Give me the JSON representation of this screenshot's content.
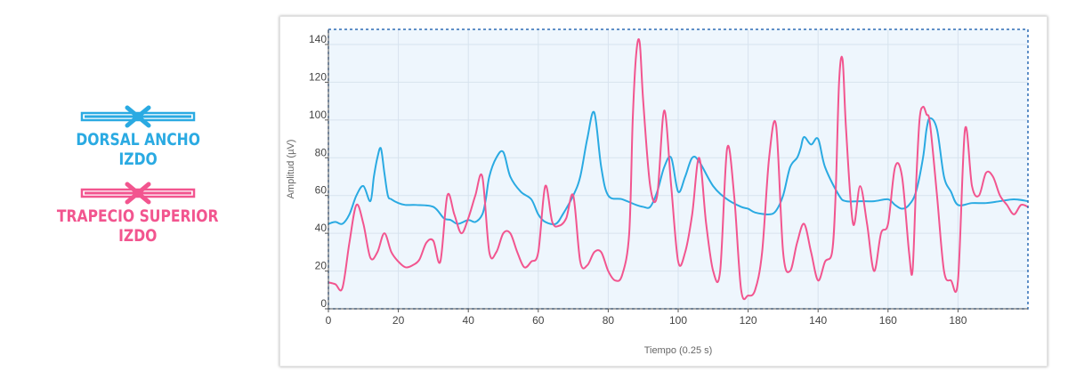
{
  "legend": [
    {
      "label_line1": "DORSAL ANCHO",
      "label_line2": "IZDO",
      "color": "#2aaae2"
    },
    {
      "label_line1": "TRAPECIO SUPERIOR",
      "label_line2": "IZDO",
      "color": "#f2558f"
    }
  ],
  "chart_data": {
    "type": "line",
    "xlabel": "Tiempo (0.25 s)",
    "ylabel": "Amplitud (µV)",
    "xlim": [
      0,
      200
    ],
    "ylim": [
      0,
      148
    ],
    "xticks": [
      0,
      20,
      40,
      60,
      80,
      100,
      120,
      140,
      160,
      180
    ],
    "yticks": [
      0,
      20,
      40,
      60,
      80,
      100,
      120,
      140
    ],
    "grid": true,
    "series": [
      {
        "name": "DORSAL ANCHO IZDO",
        "color": "#2aaae2",
        "x": [
          0,
          2,
          4,
          6,
          8,
          10,
          12,
          13,
          14,
          15,
          16,
          17,
          18,
          20,
          22,
          25,
          30,
          33,
          35,
          37,
          40,
          42,
          44,
          45,
          46,
          48,
          50,
          52,
          55,
          58,
          60,
          62,
          65,
          67,
          70,
          72,
          74,
          76,
          78,
          80,
          84,
          88,
          90,
          92,
          94,
          96,
          98,
          100,
          102,
          104,
          106,
          110,
          114,
          118,
          120,
          122,
          126,
          128,
          130,
          132,
          134,
          135,
          136,
          138,
          140,
          142,
          146,
          148,
          152,
          156,
          160,
          162,
          164,
          166,
          168,
          170,
          171,
          172,
          174,
          176,
          178,
          180,
          184,
          188,
          192,
          196,
          200
        ],
        "y": [
          45,
          46,
          45,
          50,
          60,
          65,
          57,
          70,
          80,
          85,
          72,
          60,
          58,
          56,
          55,
          55,
          54,
          48,
          47,
          45,
          47,
          46,
          50,
          58,
          70,
          80,
          83,
          70,
          62,
          58,
          50,
          46,
          45,
          50,
          60,
          70,
          90,
          104,
          75,
          60,
          58,
          55,
          54,
          54,
          62,
          75,
          80,
          62,
          70,
          80,
          78,
          65,
          58,
          54,
          53,
          51,
          50,
          52,
          60,
          75,
          80,
          85,
          91,
          87,
          90,
          75,
          60,
          57,
          57,
          57,
          58,
          55,
          53,
          55,
          62,
          80,
          95,
          101,
          95,
          70,
          62,
          55,
          56,
          56,
          57,
          58,
          57
        ]
      },
      {
        "name": "TRAPECIO SUPERIOR IZDO",
        "color": "#f2558f",
        "x": [
          0,
          2,
          4,
          6,
          8,
          10,
          12,
          14,
          16,
          18,
          20,
          22,
          24,
          26,
          28,
          30,
          32,
          34,
          36,
          38,
          40,
          42,
          44,
          46,
          48,
          50,
          52,
          54,
          56,
          58,
          60,
          62,
          64,
          66,
          68,
          70,
          72,
          74,
          76,
          78,
          80,
          82,
          84,
          86,
          87,
          88,
          89,
          90,
          92,
          94,
          96,
          98,
          100,
          102,
          104,
          106,
          108,
          110,
          112,
          114,
          116,
          118,
          120,
          122,
          124,
          126,
          128,
          130,
          132,
          134,
          136,
          138,
          140,
          142,
          144,
          145,
          146,
          147,
          148,
          150,
          152,
          154,
          156,
          158,
          160,
          162,
          164,
          166,
          167,
          168,
          169,
          170,
          171,
          172,
          174,
          176,
          178,
          180,
          182,
          184,
          186,
          188,
          190,
          192,
          194,
          196,
          198,
          200
        ],
        "y": [
          14,
          13,
          11,
          35,
          55,
          45,
          27,
          30,
          40,
          30,
          25,
          22,
          23,
          26,
          35,
          36,
          25,
          60,
          50,
          40,
          48,
          60,
          70,
          30,
          30,
          40,
          40,
          30,
          22,
          25,
          30,
          65,
          46,
          44,
          48,
          60,
          25,
          23,
          30,
          30,
          20,
          15,
          18,
          40,
          100,
          135,
          141,
          110,
          65,
          60,
          105,
          65,
          25,
          30,
          50,
          80,
          45,
          20,
          20,
          85,
          60,
          10,
          7,
          10,
          30,
          80,
          97,
          30,
          20,
          35,
          45,
          30,
          15,
          25,
          30,
          60,
          120,
          132,
          95,
          45,
          65,
          45,
          20,
          40,
          45,
          75,
          70,
          30,
          20,
          65,
          100,
          107,
          103,
          98,
          60,
          20,
          15,
          15,
          95,
          65,
          60,
          72,
          70,
          60,
          55,
          50,
          55,
          54
        ]
      }
    ]
  }
}
